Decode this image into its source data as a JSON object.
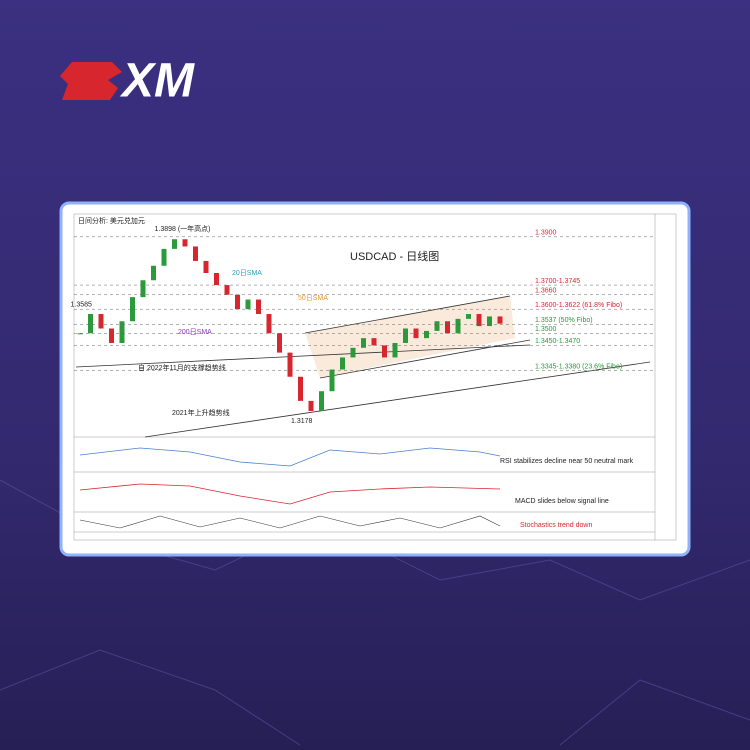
{
  "logo": {
    "text": "XM"
  },
  "chart": {
    "header": "日间分析: 美元兑加元",
    "title": "USDCAD - 日线图",
    "ylim": [
      1.312,
      1.392
    ],
    "closes": [
      1.35,
      1.358,
      1.352,
      1.346,
      1.355,
      1.365,
      1.372,
      1.378,
      1.385,
      1.389,
      1.386,
      1.38,
      1.375,
      1.37,
      1.366,
      1.36,
      1.364,
      1.358,
      1.35,
      1.342,
      1.332,
      1.322,
      1.3178,
      1.326,
      1.335,
      1.34,
      1.344,
      1.348,
      1.345,
      1.34,
      1.346,
      1.352,
      1.348,
      1.351,
      1.355,
      1.35,
      1.356,
      1.358,
      1.353,
      1.357,
      1.354
    ],
    "annotations": [
      {
        "text": "1.3898 (一年高点)",
        "value": 1.3898
      },
      {
        "text": "1.3585",
        "value": 1.3585
      },
      {
        "text": "1.3178",
        "value": 1.3178
      }
    ],
    "levels": [
      {
        "text": "1.3900",
        "value": 1.39,
        "color": "#d8262e"
      },
      {
        "text": "1.3700-1.3745",
        "value": 1.37,
        "color": "#d8262e"
      },
      {
        "text": "1.3660",
        "value": 1.366,
        "color": "#d8262e"
      },
      {
        "text": "1.3600-1.3622 (61.8% Fibo)",
        "value": 1.36,
        "color": "#d8262e"
      },
      {
        "text": "1.3537 (50% Fibo)",
        "value": 1.3537,
        "color": "#2a9a3a"
      },
      {
        "text": "1.3500",
        "value": 1.35,
        "color": "#2a9a3a"
      },
      {
        "text": "1.3450-1.3470",
        "value": 1.345,
        "color": "#2a9a3a"
      },
      {
        "text": "1.3345-1.3380 (23.6% Fibo)",
        "value": 1.3345,
        "color": "#2a9a3a"
      }
    ],
    "sma_labels": [
      {
        "text": "20日SMA",
        "color": "#2aa6b8"
      },
      {
        "text": "50日SMA",
        "color": "#e89a2a"
      },
      {
        "text": "200日SMA",
        "color": "#8a3ab8"
      }
    ],
    "trendlines": [
      "自 2022年11月的支撑趋势线",
      "2021年上升趋势线"
    ],
    "panels": [
      {
        "text": "RSI stabilizes decline near 50 neutral mark",
        "color": "#222222"
      },
      {
        "text": "MACD slides below signal line",
        "color": "#222222"
      },
      {
        "text": "Stochastics trend down",
        "color": "#d8262e"
      }
    ]
  }
}
